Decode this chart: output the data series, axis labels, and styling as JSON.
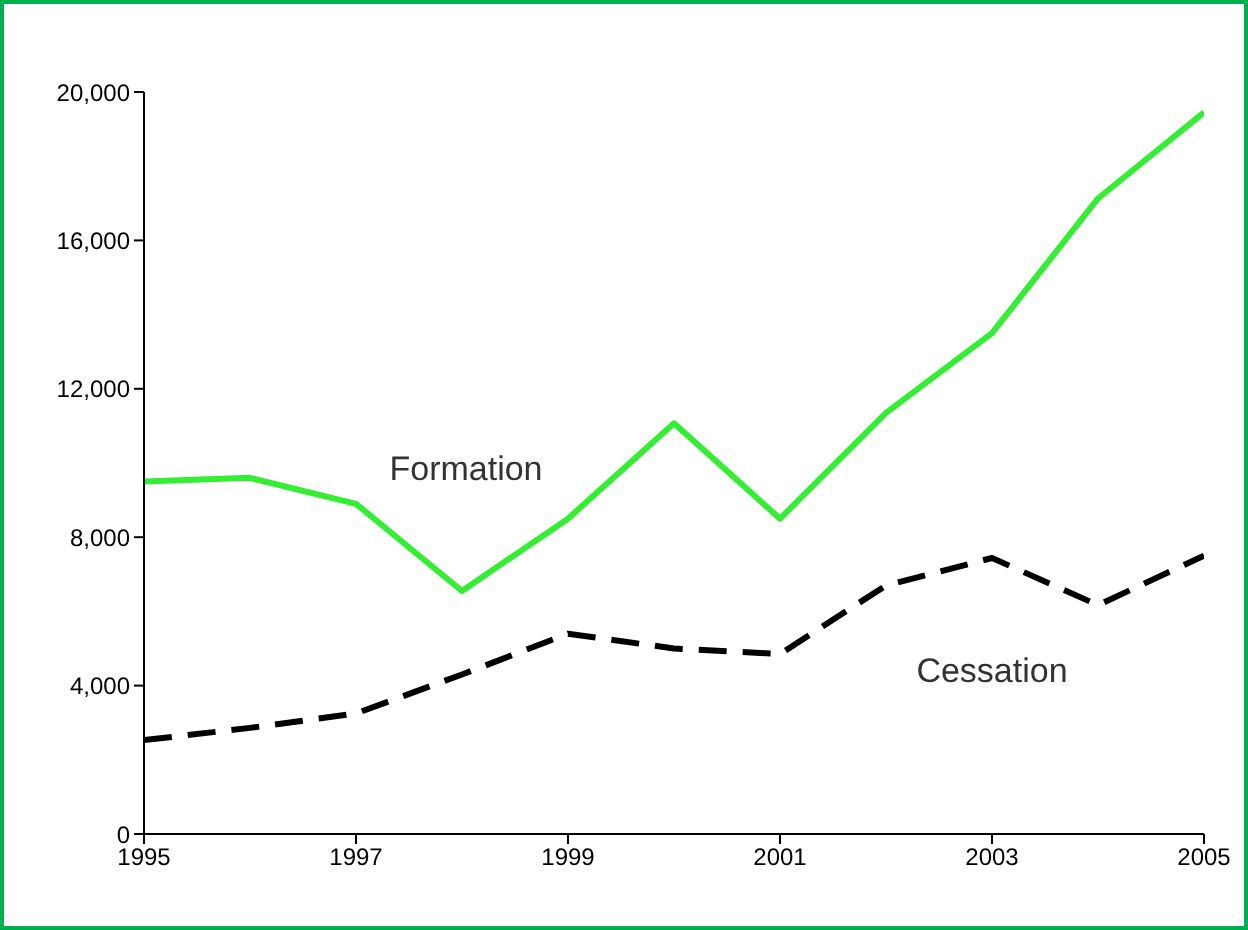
{
  "chart_data": {
    "type": "line",
    "x": [
      1995,
      1996,
      1997,
      1998,
      1999,
      2000,
      2001,
      2002,
      2003,
      2004,
      2005
    ],
    "series": [
      {
        "name": "Formation",
        "color": "#33ee33",
        "line_style": "solid",
        "values": [
          9500,
          9600,
          8900,
          6550,
          8500,
          11070,
          8500,
          11350,
          13500,
          17130,
          19450
        ]
      },
      {
        "name": "Cessation",
        "color": "#000000",
        "line_style": "dashed",
        "values": [
          2530,
          2860,
          3250,
          4300,
          5400,
          5000,
          4850,
          6700,
          7440,
          6170,
          7500
        ]
      }
    ],
    "xlim": [
      1995,
      2005
    ],
    "xticks": [
      1995,
      1997,
      1999,
      2001,
      2003,
      2005
    ],
    "ylim": [
      0,
      20000
    ],
    "yticks": [
      {
        "value": 0,
        "label": "0"
      },
      {
        "value": 4000,
        "label": "4,000"
      },
      {
        "value": 8000,
        "label": "8,000"
      },
      {
        "value": 12000,
        "label": "12,000"
      },
      {
        "value": 16000,
        "label": "16,000"
      },
      {
        "value": 20000,
        "label": "20,000"
      }
    ],
    "grid": false,
    "legend": false,
    "marker": "none"
  }
}
